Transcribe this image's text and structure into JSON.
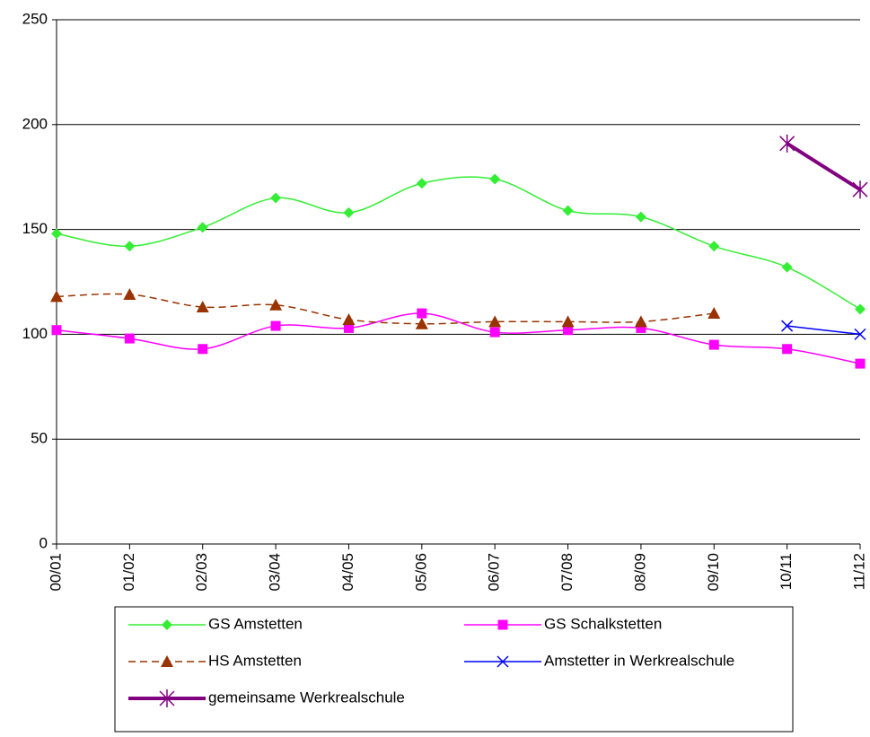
{
  "chart_data": {
    "type": "line",
    "categories": [
      "00/01",
      "01/02",
      "02/03",
      "03/04",
      "04/05",
      "05/06",
      "06/07",
      "07/08",
      "08/09",
      "09/10",
      "10/11",
      "11/12"
    ],
    "series": [
      {
        "name": "GS Amstetten",
        "color": "#33ee33",
        "marker": "diamond",
        "line_style": "solid",
        "values": [
          148,
          142,
          151,
          165,
          158,
          172,
          174,
          159,
          156,
          142,
          132,
          112
        ]
      },
      {
        "name": "GS Schalkstetten",
        "color": "#ff00ff",
        "marker": "square",
        "line_style": "solid",
        "values": [
          102,
          98,
          93,
          104,
          103,
          110,
          101,
          102,
          103,
          95,
          93,
          86
        ]
      },
      {
        "name": "HS Amstetten",
        "color": "#993300",
        "marker": "triangle",
        "line_style": "dashed",
        "values": [
          118,
          119,
          113,
          114,
          107,
          105,
          106,
          106,
          106,
          110,
          null,
          null
        ]
      },
      {
        "name": "Amstetter in Werkrealschule",
        "color": "#0000ff",
        "marker": "x",
        "line_style": "solid",
        "values": [
          null,
          null,
          null,
          null,
          null,
          null,
          null,
          null,
          null,
          null,
          104,
          100
        ]
      },
      {
        "name": "gemeinsame Werkrealschule",
        "color": "#800080",
        "marker": "asterisk",
        "line_style": "thick",
        "values": [
          null,
          null,
          null,
          null,
          null,
          null,
          null,
          null,
          null,
          null,
          191,
          169
        ]
      }
    ],
    "ylim": [
      0,
      250
    ],
    "yticks": [
      0,
      50,
      100,
      150,
      200,
      250
    ],
    "grid": true,
    "legend": "bottom"
  }
}
